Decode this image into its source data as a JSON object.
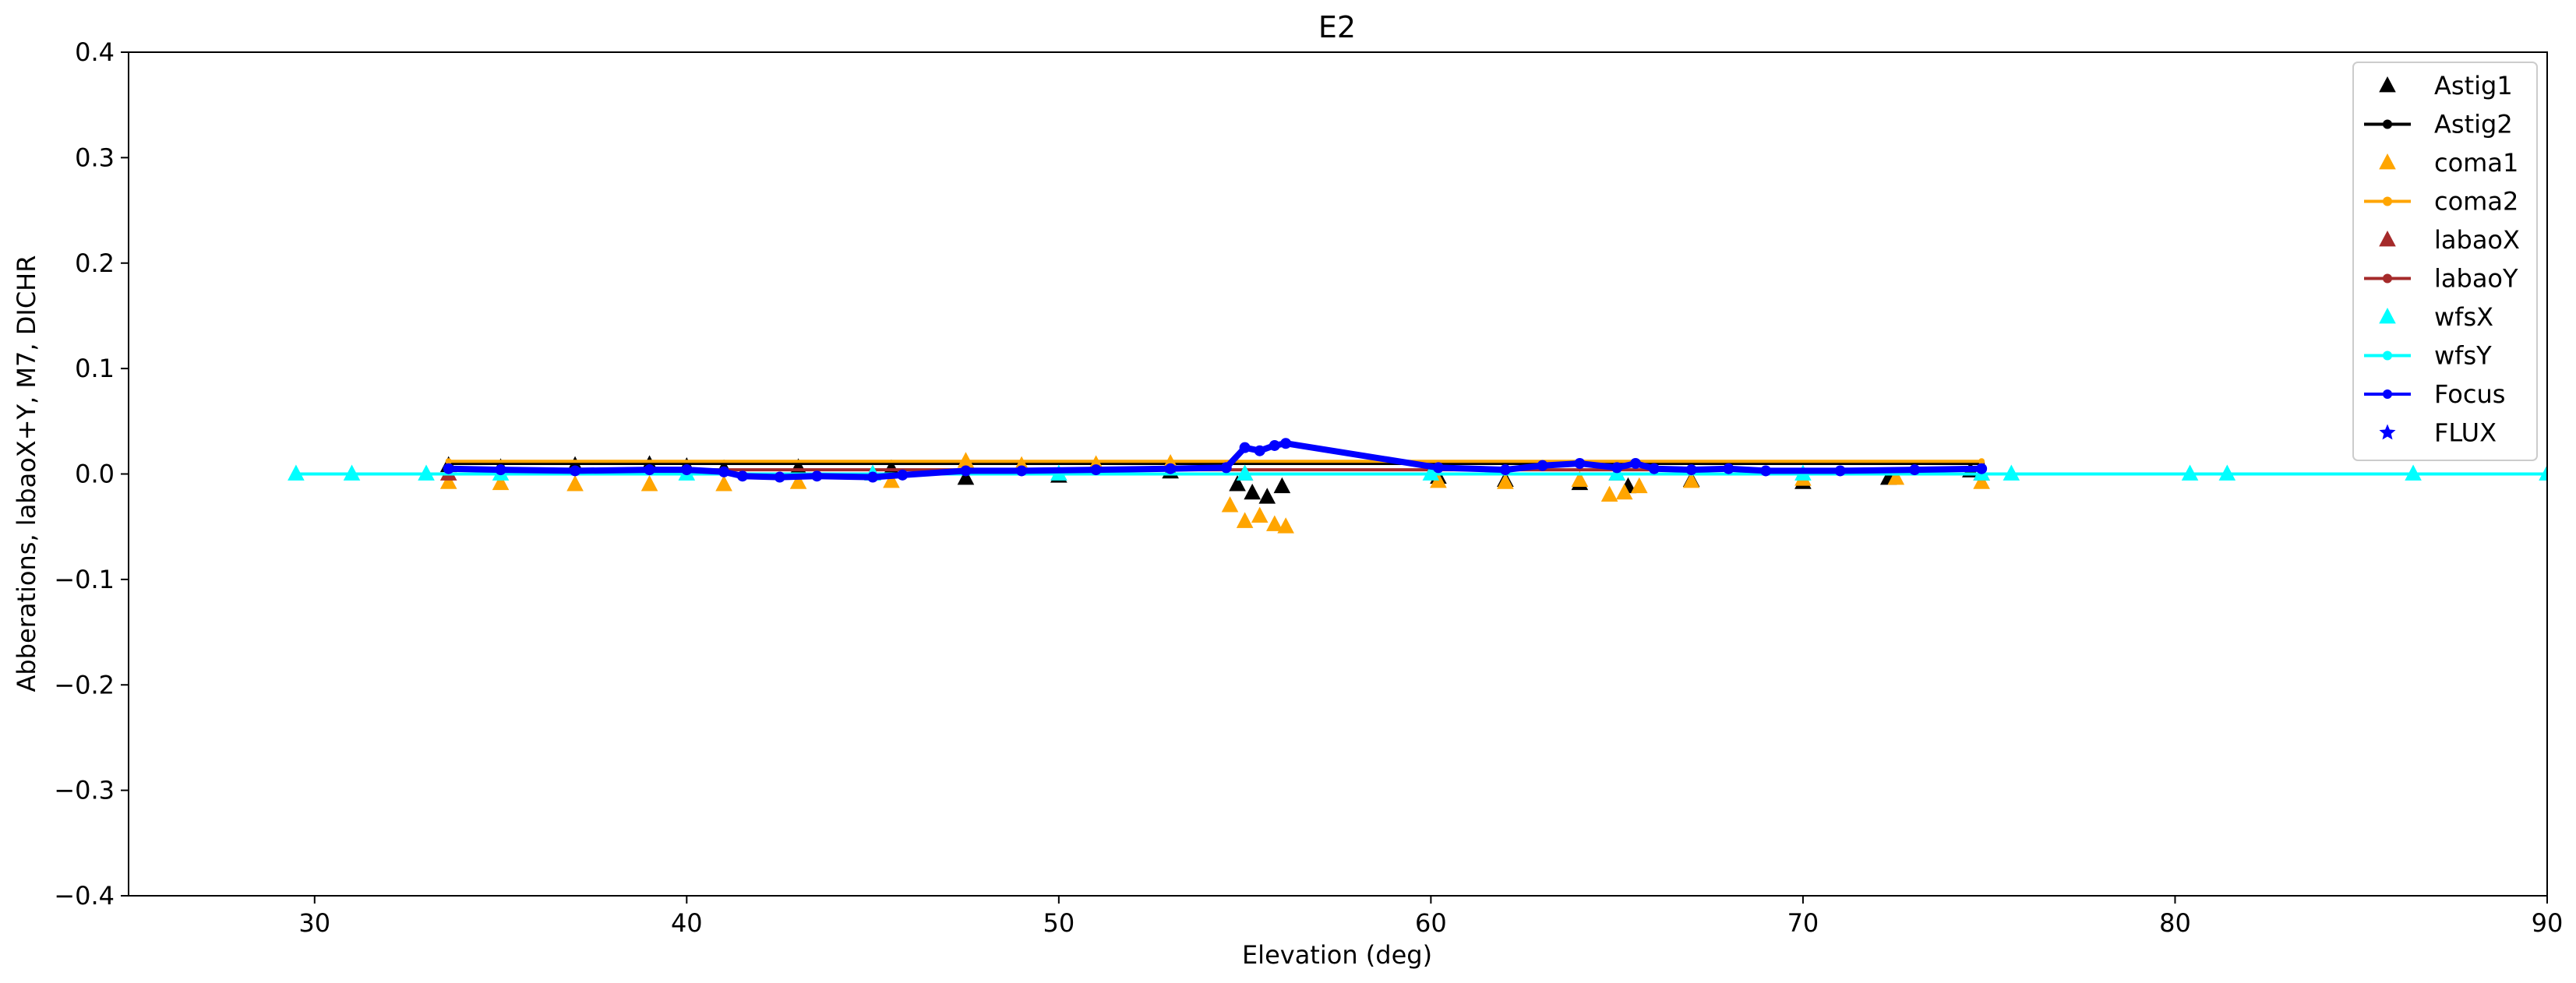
{
  "chart_data": {
    "type": "scatter",
    "title": "E2",
    "xlabel": "Elevation (deg)",
    "ylabel": "Abberations, labaoX+Y, M7, DICHR",
    "xlim": [
      25,
      90
    ],
    "ylim": [
      -0.4,
      0.4
    ],
    "xticks": [
      30,
      40,
      50,
      60,
      70,
      80,
      90
    ],
    "xtick_labels": [
      "30",
      "40",
      "50",
      "60",
      "70",
      "80",
      "90"
    ],
    "yticks": [
      -0.4,
      -0.3,
      -0.2,
      -0.1,
      0.0,
      0.1,
      0.2,
      0.3,
      0.4
    ],
    "ytick_labels": [
      "−0.4",
      "−0.3",
      "−0.2",
      "−0.1",
      "0.0",
      "0.1",
      "0.2",
      "0.3",
      "0.4"
    ],
    "grid": false,
    "legend_position": "top-right",
    "series": [
      {
        "name": "Astig1",
        "color": "#000000",
        "marker": "triangle",
        "line": false,
        "x": [
          33.6,
          35,
          37,
          39,
          40,
          41,
          43,
          45.5,
          47.5,
          50,
          53,
          54.8,
          55.2,
          55.6,
          56.0,
          60.2,
          62,
          64,
          65.3,
          67,
          70,
          72.3,
          74.5
        ],
        "y": [
          0.008,
          0.006,
          0.008,
          0.009,
          0.007,
          0.005,
          0.006,
          0.005,
          -0.004,
          -0.002,
          0.002,
          -0.01,
          -0.018,
          -0.022,
          -0.012,
          -0.003,
          -0.006,
          -0.009,
          -0.012,
          -0.006,
          -0.008,
          -0.004,
          0.003
        ]
      },
      {
        "name": "Astig2",
        "color": "#000000",
        "marker": "dot",
        "line": true,
        "x": [
          33.6,
          74.8
        ],
        "y": [
          0.01,
          0.01
        ]
      },
      {
        "name": "coma1",
        "color": "#ffa500",
        "marker": "triangle",
        "line": false,
        "x": [
          33.6,
          35,
          37,
          39,
          41,
          43,
          45.5,
          47.5,
          49,
          51,
          53,
          54.6,
          55.0,
          55.4,
          55.8,
          56.1,
          60.2,
          62,
          64,
          64.8,
          65.2,
          65.6,
          67,
          70,
          72.5,
          74.8
        ],
        "y": [
          -0.008,
          -0.009,
          -0.01,
          -0.01,
          -0.01,
          -0.008,
          -0.007,
          0.012,
          0.008,
          0.009,
          0.01,
          -0.03,
          -0.045,
          -0.04,
          -0.048,
          -0.05,
          -0.007,
          -0.008,
          -0.006,
          -0.02,
          -0.018,
          -0.012,
          -0.007,
          -0.005,
          -0.004,
          -0.008
        ]
      },
      {
        "name": "coma2",
        "color": "#ffa500",
        "marker": "dot",
        "line": true,
        "x": [
          33.6,
          74.8
        ],
        "y": [
          0.012,
          0.012
        ]
      },
      {
        "name": "labaoX",
        "color": "#a52a2a",
        "marker": "triangle",
        "line": false,
        "x": [
          33.6,
          45,
          55,
          65,
          74.8
        ],
        "y": [
          0.0,
          0.0,
          0.0,
          0.0,
          0.0
        ]
      },
      {
        "name": "labaoY",
        "color": "#a52a2a",
        "marker": "dot",
        "line": true,
        "x": [
          33.6,
          74.8
        ],
        "y": [
          0.004,
          0.004
        ]
      },
      {
        "name": "wfsX",
        "color": "#00ffff",
        "marker": "triangle",
        "line": false,
        "x": [
          29.5,
          31,
          33,
          35,
          40,
          45,
          50,
          55,
          60,
          65,
          70,
          74.8,
          75.6,
          80.4,
          81.4,
          86.4,
          90
        ],
        "y": [
          0.0,
          0.0,
          0.0,
          0.0,
          0.0,
          0.0,
          0.0,
          0.0,
          0.0,
          0.0,
          0.0,
          0.0,
          0.0,
          0.0,
          0.0,
          0.0,
          0.0
        ]
      },
      {
        "name": "wfsY",
        "color": "#00ffff",
        "marker": "dot",
        "line": true,
        "x": [
          29.5,
          90
        ],
        "y": [
          0.0,
          0.0
        ]
      },
      {
        "name": "Focus",
        "color": "#0000ff",
        "marker": "dot",
        "line": true,
        "x": [
          33.6,
          35,
          37,
          39,
          40,
          41,
          41.5,
          42.5,
          43.5,
          45,
          45.8,
          47.5,
          49,
          51,
          53,
          54.5,
          55.0,
          55.4,
          55.8,
          56.1,
          60.2,
          62,
          63,
          64,
          65,
          65.5,
          66,
          67,
          68,
          69,
          71,
          73,
          74.8
        ],
        "y": [
          0.005,
          0.004,
          0.003,
          0.004,
          0.004,
          0.002,
          -0.002,
          -0.003,
          -0.002,
          -0.003,
          -0.001,
          0.003,
          0.003,
          0.004,
          0.005,
          0.006,
          0.025,
          0.022,
          0.027,
          0.029,
          0.006,
          0.004,
          0.008,
          0.01,
          0.006,
          0.01,
          0.005,
          0.004,
          0.005,
          0.003,
          0.003,
          0.004,
          0.005
        ]
      },
      {
        "name": "FLUX",
        "color": "#0000ff",
        "marker": "star",
        "line": false,
        "x": [],
        "y": []
      }
    ]
  }
}
